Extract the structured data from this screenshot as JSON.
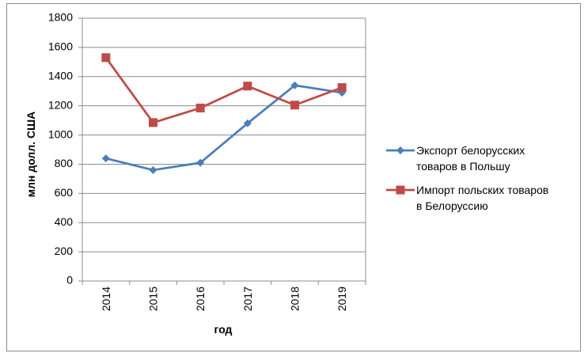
{
  "chart_data": {
    "type": "line",
    "categories": [
      "2014",
      "2015",
      "2016",
      "2017",
      "2018",
      "2019"
    ],
    "series": [
      {
        "name": "Экспорт белорусских товаров в Польшу",
        "legend_lines": [
          "Экспорт белорусских",
          "товаров в Польшу"
        ],
        "values": [
          840,
          760,
          810,
          1080,
          1340,
          1290
        ],
        "color": "#4A7EBB",
        "marker": "diamond"
      },
      {
        "name": "Импорт польских товаров в Белоруссию",
        "legend_lines": [
          "Импорт польских товаров",
          "в Белоруссию"
        ],
        "values": [
          1530,
          1085,
          1185,
          1335,
          1205,
          1325
        ],
        "color": "#BE4B48",
        "marker": "square"
      }
    ],
    "xlabel": "год",
    "ylabel": "млн долл. США",
    "ylim": [
      0,
      1800
    ],
    "yticks": [
      "0",
      "200",
      "400",
      "600",
      "800",
      "1000",
      "1200",
      "1400",
      "1600",
      "1800"
    ],
    "grid": true,
    "legend_position": "right"
  }
}
